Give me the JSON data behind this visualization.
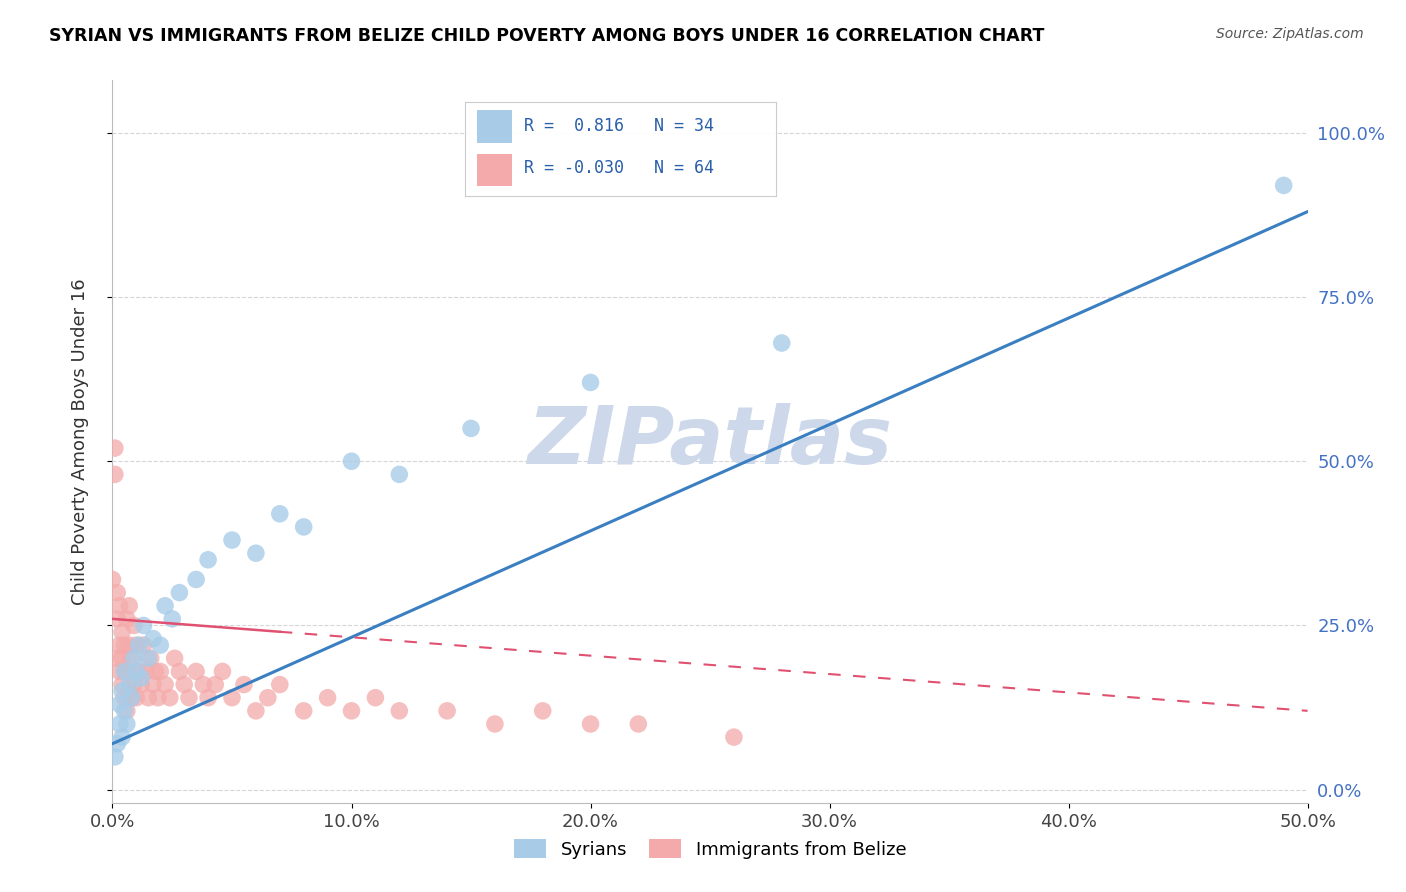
{
  "title": "SYRIAN VS IMMIGRANTS FROM BELIZE CHILD POVERTY AMONG BOYS UNDER 16 CORRELATION CHART",
  "source": "Source: ZipAtlas.com",
  "ylabel": "Child Poverty Among Boys Under 16",
  "xlim": [
    0.0,
    0.5
  ],
  "ylim": [
    -0.02,
    1.08
  ],
  "xticks": [
    0.0,
    0.1,
    0.2,
    0.3,
    0.4,
    0.5
  ],
  "xticklabels": [
    "0.0%",
    "10.0%",
    "20.0%",
    "30.0%",
    "40.0%",
    "50.0%"
  ],
  "yticks_left": [],
  "yticks_right": [
    0.0,
    0.25,
    0.5,
    0.75,
    1.0
  ],
  "yticklabels_right": [
    "0.0%",
    "25.0%",
    "50.0%",
    "75.0%",
    "100.0%"
  ],
  "syrian_color": "#a8cce8",
  "belize_color": "#f4aaaa",
  "syrian_line_color": "#3a7fc1",
  "belize_line_color": "#e05070",
  "belize_line_dash": true,
  "R_syrian": 0.816,
  "N_syrian": 34,
  "R_belize": -0.03,
  "N_belize": 64,
  "watermark": "ZIPatlas",
  "watermark_color": "#cdd8ea",
  "syrian_scatter_x": [
    0.001,
    0.002,
    0.003,
    0.003,
    0.004,
    0.004,
    0.005,
    0.005,
    0.006,
    0.007,
    0.008,
    0.009,
    0.01,
    0.011,
    0.012,
    0.013,
    0.015,
    0.017,
    0.02,
    0.022,
    0.025,
    0.028,
    0.035,
    0.04,
    0.05,
    0.06,
    0.07,
    0.08,
    0.1,
    0.12,
    0.15,
    0.2,
    0.28,
    0.49
  ],
  "syrian_scatter_y": [
    0.05,
    0.07,
    0.1,
    0.13,
    0.08,
    0.15,
    0.12,
    0.18,
    0.1,
    0.16,
    0.14,
    0.2,
    0.18,
    0.22,
    0.17,
    0.25,
    0.2,
    0.23,
    0.22,
    0.28,
    0.26,
    0.3,
    0.32,
    0.35,
    0.38,
    0.36,
    0.42,
    0.4,
    0.5,
    0.48,
    0.55,
    0.62,
    0.68,
    0.92
  ],
  "belize_scatter_x": [
    0.0,
    0.001,
    0.001,
    0.002,
    0.002,
    0.002,
    0.003,
    0.003,
    0.003,
    0.004,
    0.004,
    0.004,
    0.005,
    0.005,
    0.005,
    0.006,
    0.006,
    0.006,
    0.007,
    0.007,
    0.007,
    0.008,
    0.008,
    0.009,
    0.009,
    0.01,
    0.01,
    0.011,
    0.012,
    0.013,
    0.014,
    0.015,
    0.016,
    0.017,
    0.018,
    0.019,
    0.02,
    0.022,
    0.024,
    0.026,
    0.028,
    0.03,
    0.032,
    0.035,
    0.038,
    0.04,
    0.043,
    0.046,
    0.05,
    0.055,
    0.06,
    0.065,
    0.07,
    0.08,
    0.09,
    0.1,
    0.11,
    0.12,
    0.14,
    0.16,
    0.18,
    0.2,
    0.22,
    0.26
  ],
  "belize_scatter_y": [
    0.32,
    0.48,
    0.52,
    0.2,
    0.26,
    0.3,
    0.18,
    0.22,
    0.28,
    0.16,
    0.2,
    0.24,
    0.14,
    0.18,
    0.22,
    0.12,
    0.18,
    0.26,
    0.15,
    0.22,
    0.28,
    0.14,
    0.2,
    0.16,
    0.25,
    0.14,
    0.22,
    0.18,
    0.16,
    0.22,
    0.18,
    0.14,
    0.2,
    0.16,
    0.18,
    0.14,
    0.18,
    0.16,
    0.14,
    0.2,
    0.18,
    0.16,
    0.14,
    0.18,
    0.16,
    0.14,
    0.16,
    0.18,
    0.14,
    0.16,
    0.12,
    0.14,
    0.16,
    0.12,
    0.14,
    0.12,
    0.14,
    0.12,
    0.12,
    0.1,
    0.12,
    0.1,
    0.1,
    0.08
  ],
  "blue_line_x0": 0.0,
  "blue_line_y0": 0.07,
  "blue_line_x1": 0.5,
  "blue_line_y1": 0.88,
  "pink_line_x0": 0.0,
  "pink_line_y0": 0.26,
  "pink_line_x1": 0.5,
  "pink_line_y1": 0.12
}
